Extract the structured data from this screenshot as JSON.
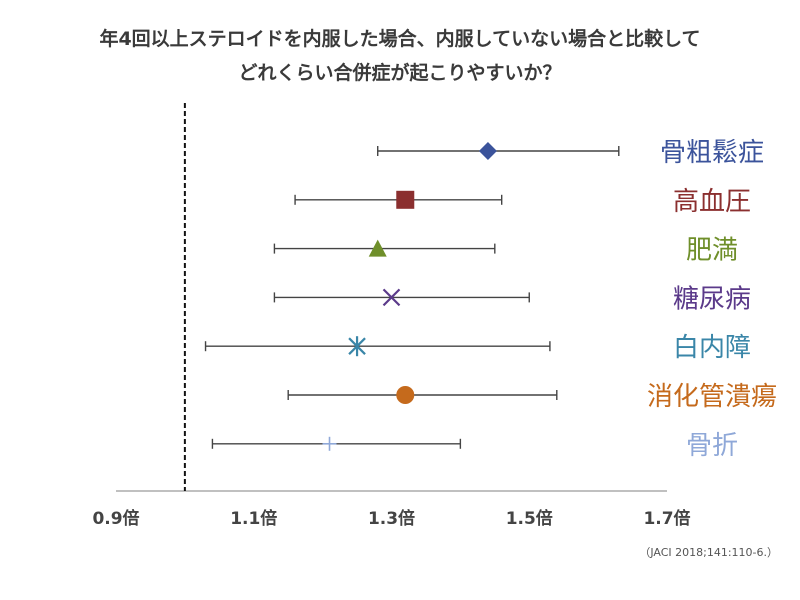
{
  "title_line1": "年4回以上ステロイドを内服した場合、内服していない場合と比較して",
  "title_line2": "どれくらい合併症が起こりやすいか？",
  "source": "（JACI 2018;141:110-6.）",
  "chart_data": {
    "type": "forest",
    "xlim": [
      0.9,
      1.7
    ],
    "xticks": [
      0.9,
      1.1,
      1.3,
      1.5,
      1.7
    ],
    "xtick_labels": [
      "0.9倍",
      "1.1倍",
      "1.3倍",
      "1.5倍",
      "1.7倍"
    ],
    "reference_line": 1.0,
    "series": [
      {
        "name": "骨粗鬆症",
        "estimate": 1.44,
        "lower": 1.28,
        "upper": 1.63,
        "color": "#3b539b",
        "marker": "diamond"
      },
      {
        "name": "高血圧",
        "estimate": 1.32,
        "lower": 1.16,
        "upper": 1.46,
        "color": "#8b2f2f",
        "marker": "square"
      },
      {
        "name": "肥満",
        "estimate": 1.28,
        "lower": 1.13,
        "upper": 1.45,
        "color": "#6f8f2a",
        "marker": "triangle"
      },
      {
        "name": "糖尿病",
        "estimate": 1.3,
        "lower": 1.13,
        "upper": 1.5,
        "color": "#5b3a8a",
        "marker": "x"
      },
      {
        "name": "白内障",
        "estimate": 1.25,
        "lower": 1.03,
        "upper": 1.53,
        "color": "#3a86a8",
        "marker": "asterisk"
      },
      {
        "name": "消化管潰瘍",
        "estimate": 1.32,
        "lower": 1.15,
        "upper": 1.54,
        "color": "#c56a1c",
        "marker": "circle"
      },
      {
        "name": "骨折",
        "estimate": 1.21,
        "lower": 1.04,
        "upper": 1.4,
        "color": "#8fa8d8",
        "marker": "plus"
      }
    ]
  }
}
